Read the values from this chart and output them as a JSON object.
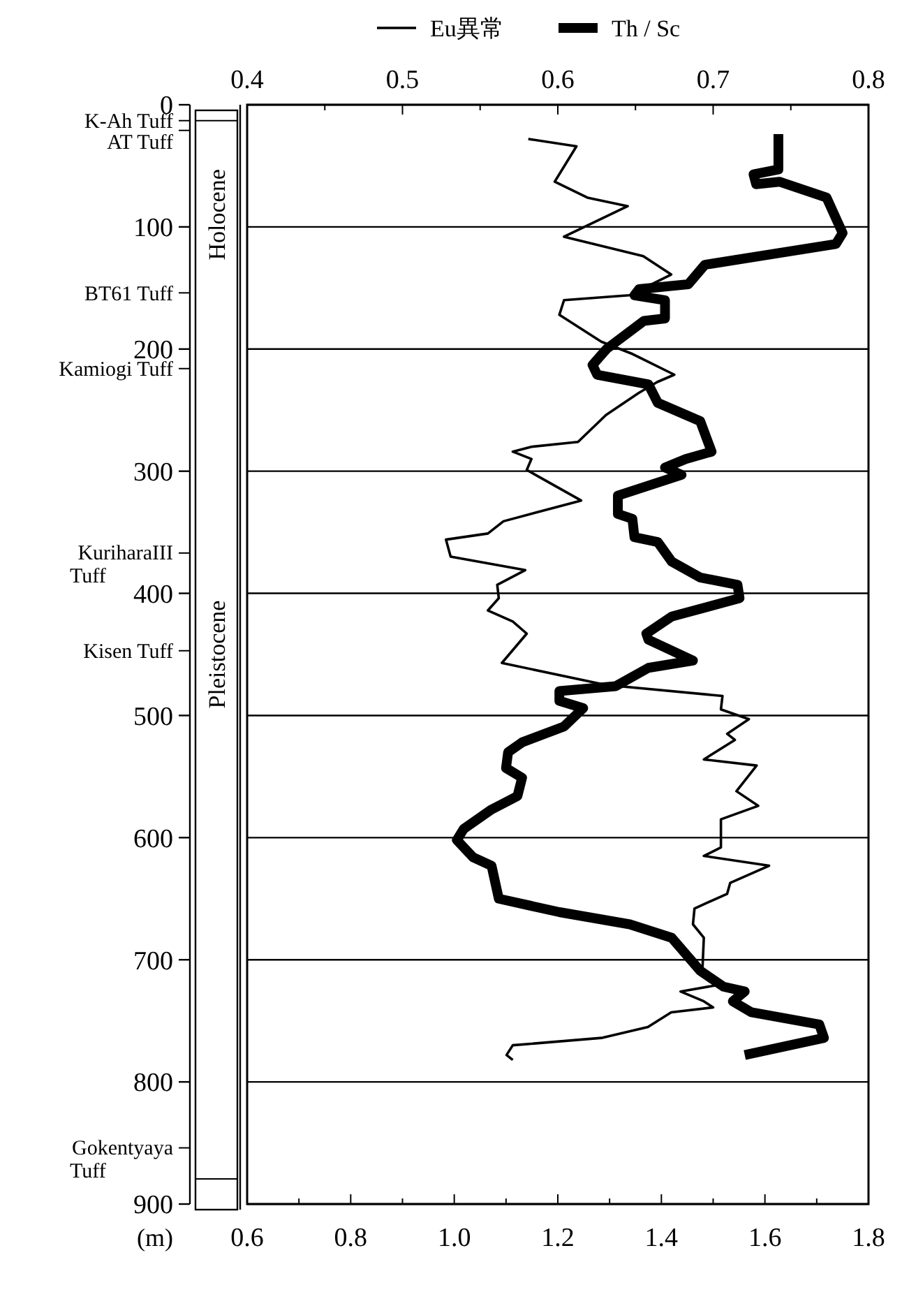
{
  "chart_data": {
    "type": "line",
    "ylabel": "(m)",
    "ylim": [
      900,
      0
    ],
    "yticks": [
      0,
      {
        "value": 13,
        "label": "K-Ah Tuff"
      },
      {
        "value": 21,
        "label": "AT Tuff"
      },
      100,
      {
        "value": 154,
        "label": "BT61 Tuff"
      },
      200,
      {
        "value": 216,
        "label": "Kamiogi Tuff"
      },
      300,
      {
        "value": 367,
        "label": "KuriharaIII Tuff"
      },
      400,
      {
        "value": 447,
        "label": "Kisen Tuff"
      },
      500,
      600,
      700,
      800,
      {
        "value": 854,
        "label": "Gokentyaya Tuff"
      },
      900
    ],
    "xlim": [
      0.6,
      1.8
    ],
    "xticks": [
      0.6,
      {
        "value": 0.7,
        "label": null
      },
      0.8,
      {
        "value": 0.9,
        "label": null
      },
      "1.0",
      {
        "value": 1.1,
        "label": null
      },
      1.2,
      {
        "value": 1.3,
        "label": null
      },
      1.4,
      {
        "value": 1.5,
        "label": null
      },
      1.6,
      {
        "value": 1.7,
        "label": null
      },
      1.8
    ],
    "x2lim": [
      0.4,
      0.8
    ],
    "x2ticks": [
      0.4,
      {
        "value": 0.45,
        "label": null
      },
      0.5,
      {
        "value": 0.55,
        "label": null
      },
      0.6,
      {
        "value": 0.65,
        "label": null
      },
      0.7,
      {
        "value": 0.75,
        "label": null
      },
      0.8
    ],
    "grid": "y",
    "legend": "top",
    "series": [
      {
        "name": "Eu異常",
        "color": "#000000",
        "axis": "x2",
        "x": [
          0.581,
          0.612,
          0.598,
          0.619,
          0.645,
          0.604,
          0.655,
          0.673,
          0.646,
          0.604,
          0.601,
          0.628,
          0.648,
          0.675,
          0.664,
          0.652,
          0.631,
          0.613,
          0.583,
          0.571,
          0.583,
          0.58,
          0.615,
          0.565,
          0.555,
          0.528,
          0.531,
          0.579,
          0.561,
          0.562,
          0.555,
          0.571,
          0.58,
          0.564,
          0.631,
          0.706,
          0.705,
          0.723,
          0.709,
          0.714,
          0.694,
          0.728,
          0.715,
          0.729,
          0.705,
          0.705,
          0.694,
          0.736,
          0.711,
          0.709,
          0.688,
          0.687,
          0.694,
          0.693,
          0.706,
          0.679,
          0.694,
          0.7,
          0.673,
          0.658,
          0.628,
          0.571,
          0.567,
          0.571
        ],
        "values": [
          28,
          34,
          63,
          76,
          83,
          108,
          124,
          139,
          156,
          160,
          172,
          194,
          204,
          221,
          227,
          236,
          254,
          276,
          280,
          284,
          290,
          299,
          324,
          341,
          351,
          356,
          370,
          381,
          393,
          404,
          414,
          423,
          433,
          457,
          475,
          484,
          495,
          503,
          515,
          520,
          536,
          541,
          562,
          574,
          585,
          608,
          615,
          623,
          637,
          646,
          658,
          671,
          682,
          711,
          720,
          726,
          734,
          739,
          743,
          755,
          764,
          770,
          778,
          782
        ]
      },
      {
        "name": "Th / Sc",
        "color": "#000000",
        "x": [
          1.626,
          1.626,
          1.578,
          1.583,
          1.628,
          1.719,
          1.75,
          1.737,
          1.484,
          1.452,
          1.357,
          1.348,
          1.407,
          1.407,
          1.366,
          1.294,
          1.267,
          1.276,
          1.375,
          1.393,
          1.475,
          1.497,
          1.447,
          1.407,
          1.439,
          1.316,
          1.316,
          1.344,
          1.348,
          1.393,
          1.42,
          1.475,
          1.547,
          1.551,
          1.42,
          1.371,
          1.375,
          1.461,
          1.375,
          1.312,
          1.203,
          1.203,
          1.249,
          1.212,
          1.131,
          1.104,
          1.1,
          1.131,
          1.122,
          1.072,
          1.018,
          1.005,
          1.036,
          1.072,
          1.086,
          1.203,
          1.339,
          1.42,
          1.475,
          1.52,
          1.561,
          1.538,
          1.574,
          1.705,
          1.714,
          1.561
        ],
        "values": [
          24,
          53,
          57,
          65,
          63,
          76,
          105,
          114,
          131,
          147,
          151,
          156,
          160,
          175,
          177,
          200,
          213,
          221,
          229,
          244,
          259,
          284,
          290,
          297,
          303,
          320,
          335,
          339,
          354,
          358,
          374,
          387,
          393,
          404,
          419,
          433,
          438,
          455,
          461,
          476,
          480,
          488,
          494,
          509,
          522,
          530,
          543,
          551,
          566,
          577,
          593,
          602,
          616,
          623,
          650,
          661,
          671,
          682,
          709,
          722,
          726,
          734,
          743,
          753,
          764,
          778
        ]
      }
    ],
    "annotations": [
      "Holocene",
      "Pleistocene"
    ]
  }
}
